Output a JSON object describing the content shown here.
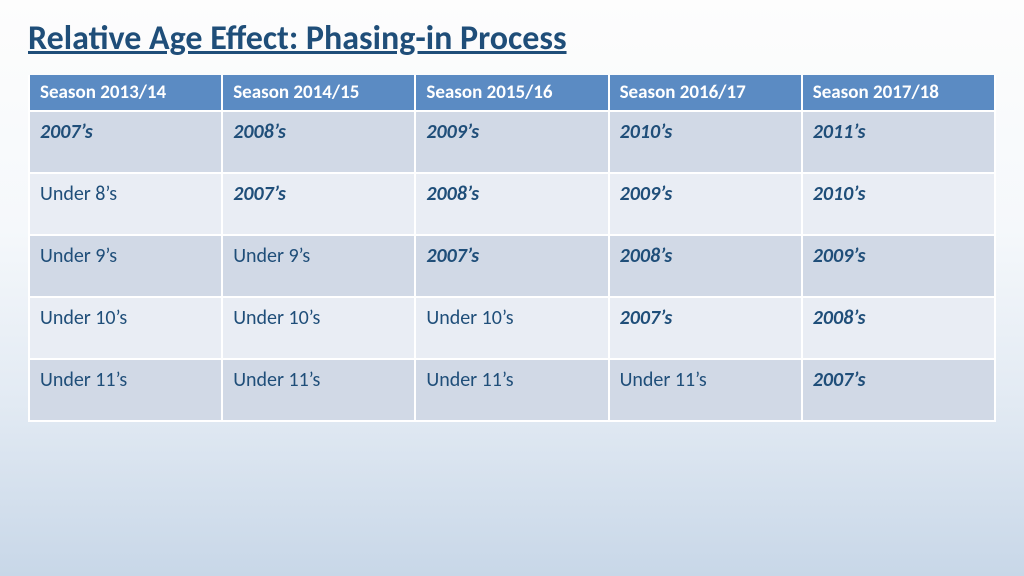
{
  "title": "Relative Age Effect: Phasing-in Process",
  "colors": {
    "header_bg": "#5b8bc3",
    "header_text": "#ffffff",
    "band_a": "#d1d9e6",
    "band_b": "#e9edf4",
    "cell_text": "#1f4e79",
    "border": "#ffffff",
    "title_text": "#1f4e79"
  },
  "typography": {
    "title_fontsize": 34,
    "header_fontsize": 19,
    "cell_fontsize": 20,
    "font_family": "Calibri"
  },
  "table": {
    "columns": [
      "Season 2013/14",
      "Season 2014/15",
      "Season 2015/16",
      "Season 2016/17",
      "Season 2017/18"
    ],
    "rows": [
      [
        {
          "text": "2007’s",
          "bold_italic": true
        },
        {
          "text": "2008’s",
          "bold_italic": true
        },
        {
          "text": "2009’s",
          "bold_italic": true
        },
        {
          "text": "2010’s",
          "bold_italic": true
        },
        {
          "text": "2011’s",
          "bold_italic": true
        }
      ],
      [
        {
          "text": "Under 8’s",
          "bold_italic": false
        },
        {
          "text": "2007’s",
          "bold_italic": true
        },
        {
          "text": "2008’s",
          "bold_italic": true
        },
        {
          "text": "2009’s",
          "bold_italic": true
        },
        {
          "text": "2010’s",
          "bold_italic": true
        }
      ],
      [
        {
          "text": "Under 9’s",
          "bold_italic": false
        },
        {
          "text": "Under 9’s",
          "bold_italic": false
        },
        {
          "text": "2007’s",
          "bold_italic": true
        },
        {
          "text": "2008’s",
          "bold_italic": true
        },
        {
          "text": "2009’s",
          "bold_italic": true
        }
      ],
      [
        {
          "text": "Under 10’s",
          "bold_italic": false
        },
        {
          "text": "Under 10’s",
          "bold_italic": false
        },
        {
          "text": "Under 10’s",
          "bold_italic": false
        },
        {
          "text": "2007’s",
          "bold_italic": true
        },
        {
          "text": "2008’s",
          "bold_italic": true
        }
      ],
      [
        {
          "text": "Under 11’s",
          "bold_italic": false
        },
        {
          "text": "Under 11’s",
          "bold_italic": false
        },
        {
          "text": "Under 11’s",
          "bold_italic": false
        },
        {
          "text": "Under 11’s",
          "bold_italic": false
        },
        {
          "text": "2007’s",
          "bold_italic": true
        }
      ]
    ]
  }
}
